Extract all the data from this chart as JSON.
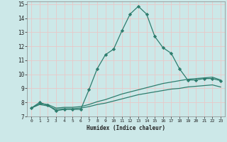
{
  "title": "",
  "xlabel": "Humidex (Indice chaleur)",
  "bg_color": "#cce8e8",
  "grid_color": "#e8c8c8",
  "line_color": "#2e7d6e",
  "xlim": [
    -0.5,
    23.5
  ],
  "ylim": [
    7,
    15.2
  ],
  "yticks": [
    7,
    8,
    9,
    10,
    11,
    12,
    13,
    14,
    15
  ],
  "xticks": [
    0,
    1,
    2,
    3,
    4,
    5,
    6,
    7,
    8,
    9,
    10,
    11,
    12,
    13,
    14,
    15,
    16,
    17,
    18,
    19,
    20,
    21,
    22,
    23
  ],
  "series": [
    {
      "x": [
        0,
        1,
        2,
        3,
        4,
        5,
        6,
        7,
        8,
        9,
        10,
        11,
        12,
        13,
        14,
        15,
        16,
        17,
        18,
        19,
        20,
        21,
        22,
        23
      ],
      "y": [
        7.6,
        8.0,
        7.8,
        7.4,
        7.5,
        7.5,
        7.5,
        8.9,
        10.4,
        11.4,
        11.8,
        13.1,
        14.3,
        14.85,
        14.3,
        12.7,
        11.9,
        11.5,
        10.4,
        9.6,
        9.6,
        9.7,
        9.7,
        9.55
      ],
      "marker": "D",
      "markersize": 2.2,
      "linewidth": 0.9
    },
    {
      "x": [
        0,
        1,
        2,
        3,
        4,
        5,
        6,
        7,
        8,
        9,
        10,
        11,
        12,
        13,
        14,
        15,
        16,
        17,
        18,
        19,
        20,
        21,
        22,
        23
      ],
      "y": [
        7.6,
        7.9,
        7.85,
        7.6,
        7.65,
        7.65,
        7.7,
        7.85,
        8.05,
        8.2,
        8.4,
        8.6,
        8.75,
        8.9,
        9.05,
        9.2,
        9.35,
        9.45,
        9.55,
        9.65,
        9.7,
        9.75,
        9.8,
        9.6
      ],
      "marker": null,
      "linewidth": 0.9
    },
    {
      "x": [
        0,
        1,
        2,
        3,
        4,
        5,
        6,
        7,
        8,
        9,
        10,
        11,
        12,
        13,
        14,
        15,
        16,
        17,
        18,
        19,
        20,
        21,
        22,
        23
      ],
      "y": [
        7.6,
        7.85,
        7.75,
        7.5,
        7.55,
        7.55,
        7.6,
        7.7,
        7.85,
        7.95,
        8.1,
        8.25,
        8.4,
        8.55,
        8.65,
        8.75,
        8.85,
        8.95,
        9.0,
        9.1,
        9.15,
        9.2,
        9.25,
        9.1
      ],
      "marker": null,
      "linewidth": 0.9
    }
  ]
}
